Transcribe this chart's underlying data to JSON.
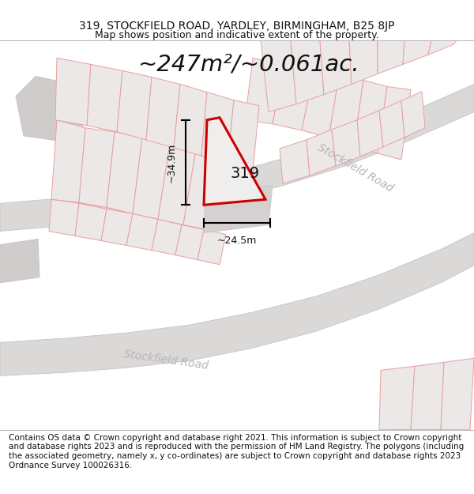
{
  "title_line1": "319, STOCKFIELD ROAD, YARDLEY, BIRMINGHAM, B25 8JP",
  "title_line2": "Map shows position and indicative extent of the property.",
  "area_text": "~247m²/~0.061ac.",
  "label_319": "319",
  "dim_width": "~24.5m",
  "dim_height": "~34.9m",
  "road_label1": "Stockfield Road",
  "road_label2": "Stockfield Road",
  "footer_text": "Contains OS data © Crown copyright and database right 2021. This information is subject to Crown copyright and database rights 2023 and is reproduced with the permission of HM Land Registry. The polygons (including the associated geometry, namely x, y co-ordinates) are subject to Crown copyright and database rights 2023 Ordnance Survey 100026316.",
  "map_bg": "#f2f0f0",
  "plot_outline_color": "#cc0000",
  "road_fill": "#dbd8d8",
  "road_edge": "#c8c4c4",
  "parcel_line_color": "#e8a0a0",
  "parcel_fill": "#ece8e8",
  "grey_fill": "#d0cccc",
  "title_fontsize": 10,
  "subtitle_fontsize": 9,
  "area_fontsize": 21,
  "footer_fontsize": 7.5,
  "dim_fontsize": 9,
  "label_fontsize": 14,
  "road_label_fontsize": 10
}
